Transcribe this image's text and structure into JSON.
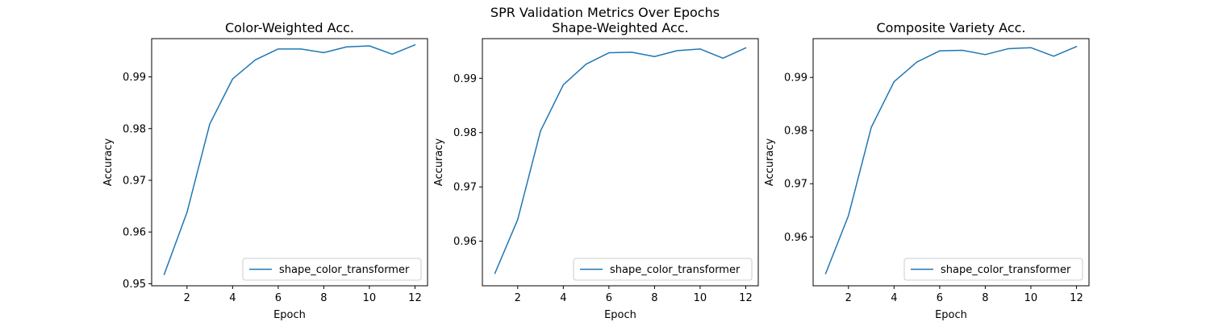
{
  "figure": {
    "title": "SPR Validation Metrics Over Epochs"
  },
  "chart_data": [
    {
      "type": "line",
      "title": "Color-Weighted Acc.",
      "xlabel": "Epoch",
      "ylabel": "Accuracy",
      "xlim": [
        0.45,
        12.55
      ],
      "ylim": [
        0.9496,
        0.9974
      ],
      "xticks": [
        2,
        4,
        6,
        8,
        10,
        12
      ],
      "yticks": [
        0.95,
        0.96,
        0.97,
        0.98,
        0.99
      ],
      "ytick_labels": [
        "0.95",
        "0.96",
        "0.97",
        "0.98",
        "0.99"
      ],
      "grid": false,
      "legend_loc": "lower-right",
      "series": [
        {
          "name": "shape_color_transformer",
          "color": "#1f77b4",
          "x": [
            1,
            2,
            3,
            4,
            5,
            6,
            7,
            8,
            9,
            10,
            11,
            12
          ],
          "y": [
            0.9518,
            0.9638,
            0.9809,
            0.9896,
            0.9933,
            0.9954,
            0.9954,
            0.9947,
            0.9958,
            0.996,
            0.9944,
            0.9962
          ]
        }
      ]
    },
    {
      "type": "line",
      "title": "Shape-Weighted Acc.",
      "xlabel": "Epoch",
      "ylabel": "Accuracy",
      "xlim": [
        0.45,
        12.55
      ],
      "ylim": [
        0.9518,
        0.9973
      ],
      "xticks": [
        2,
        4,
        6,
        8,
        10,
        12
      ],
      "yticks": [
        0.96,
        0.97,
        0.98,
        0.99
      ],
      "ytick_labels": [
        "0.96",
        "0.97",
        "0.98",
        "0.99"
      ],
      "grid": false,
      "legend_loc": "lower-right",
      "series": [
        {
          "name": "shape_color_transformer",
          "color": "#1f77b4",
          "x": [
            1,
            2,
            3,
            4,
            5,
            6,
            7,
            8,
            9,
            10,
            11,
            12
          ],
          "y": [
            0.9541,
            0.964,
            0.9803,
            0.9888,
            0.9926,
            0.9947,
            0.9948,
            0.994,
            0.9951,
            0.9954,
            0.9937,
            0.9956
          ]
        }
      ]
    },
    {
      "type": "line",
      "title": "Composite Variety Acc.",
      "xlabel": "Epoch",
      "ylabel": "Accuracy",
      "xlim": [
        0.45,
        12.55
      ],
      "ylim": [
        0.9508,
        0.9973
      ],
      "xticks": [
        2,
        4,
        6,
        8,
        10,
        12
      ],
      "yticks": [
        0.96,
        0.97,
        0.98,
        0.99
      ],
      "ytick_labels": [
        "0.96",
        "0.97",
        "0.98",
        "0.99"
      ],
      "grid": false,
      "legend_loc": "lower-right",
      "series": [
        {
          "name": "shape_color_transformer",
          "color": "#1f77b4",
          "x": [
            1,
            2,
            3,
            4,
            5,
            6,
            7,
            8,
            9,
            10,
            11,
            12
          ],
          "y": [
            0.9531,
            0.964,
            0.9806,
            0.9892,
            0.9929,
            0.995,
            0.9951,
            0.9943,
            0.9954,
            0.9956,
            0.994,
            0.9958
          ]
        }
      ]
    }
  ]
}
